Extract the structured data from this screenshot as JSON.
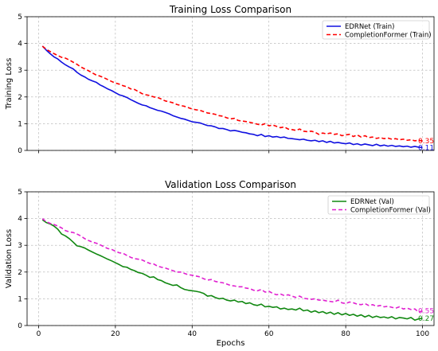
{
  "chart_data": [
    {
      "type": "line",
      "title": "Training Loss Comparison",
      "xlabel": "",
      "ylabel": "Training Loss",
      "xlim": [
        -3,
        103
      ],
      "ylim": [
        0,
        5
      ],
      "xticks": [
        0,
        20,
        40,
        60,
        80,
        100
      ],
      "yticks": [
        0,
        1,
        2,
        3,
        4,
        5
      ],
      "show_x_tick_labels": false,
      "grid": true,
      "legend_position": "top-right",
      "x": [
        1,
        2,
        3,
        4,
        5,
        6,
        7,
        8,
        9,
        10,
        11,
        12,
        13,
        14,
        15,
        16,
        17,
        18,
        19,
        20,
        21,
        22,
        23,
        24,
        25,
        26,
        27,
        28,
        29,
        30,
        31,
        32,
        33,
        34,
        35,
        36,
        37,
        38,
        39,
        40,
        41,
        42,
        43,
        44,
        45,
        46,
        47,
        48,
        49,
        50,
        51,
        52,
        53,
        54,
        55,
        56,
        57,
        58,
        59,
        60,
        61,
        62,
        63,
        64,
        65,
        66,
        67,
        68,
        69,
        70,
        71,
        72,
        73,
        74,
        75,
        76,
        77,
        78,
        79,
        80,
        81,
        82,
        83,
        84,
        85,
        86,
        87,
        88,
        89,
        90,
        91,
        92,
        93,
        94,
        95,
        96,
        97,
        98,
        99,
        100
      ],
      "series": [
        {
          "name": "EDRNet (Train)",
          "color": "#1010e0",
          "dash": "solid",
          "end_label": "0.11",
          "values": [
            3.9,
            3.75,
            3.62,
            3.5,
            3.42,
            3.3,
            3.2,
            3.12,
            3.05,
            2.92,
            2.82,
            2.75,
            2.66,
            2.6,
            2.55,
            2.45,
            2.38,
            2.3,
            2.24,
            2.16,
            2.08,
            2.04,
            1.98,
            1.9,
            1.83,
            1.76,
            1.7,
            1.67,
            1.6,
            1.55,
            1.5,
            1.47,
            1.42,
            1.37,
            1.3,
            1.25,
            1.2,
            1.17,
            1.12,
            1.07,
            1.05,
            1.03,
            0.98,
            0.93,
            0.92,
            0.88,
            0.82,
            0.82,
            0.78,
            0.73,
            0.75,
            0.72,
            0.68,
            0.66,
            0.62,
            0.6,
            0.55,
            0.6,
            0.52,
            0.55,
            0.5,
            0.52,
            0.48,
            0.5,
            0.45,
            0.44,
            0.42,
            0.4,
            0.42,
            0.38,
            0.36,
            0.38,
            0.33,
            0.36,
            0.3,
            0.34,
            0.28,
            0.3,
            0.27,
            0.25,
            0.28,
            0.22,
            0.25,
            0.2,
            0.24,
            0.21,
            0.18,
            0.23,
            0.17,
            0.2,
            0.16,
            0.19,
            0.15,
            0.17,
            0.14,
            0.16,
            0.12,
            0.15,
            0.12,
            0.11
          ]
        },
        {
          "name": "CompletionFormer (Train)",
          "color": "#ff0000",
          "dash": "dashed",
          "end_label": "0.35",
          "values": [
            3.9,
            3.78,
            3.7,
            3.62,
            3.55,
            3.48,
            3.45,
            3.38,
            3.3,
            3.22,
            3.12,
            3.05,
            2.98,
            2.9,
            2.82,
            2.78,
            2.72,
            2.65,
            2.58,
            2.52,
            2.48,
            2.42,
            2.38,
            2.3,
            2.28,
            2.2,
            2.12,
            2.08,
            2.05,
            2.0,
            1.98,
            1.92,
            1.85,
            1.82,
            1.78,
            1.72,
            1.68,
            1.65,
            1.6,
            1.55,
            1.52,
            1.5,
            1.45,
            1.4,
            1.38,
            1.35,
            1.3,
            1.28,
            1.22,
            1.18,
            1.2,
            1.12,
            1.1,
            1.08,
            1.05,
            1.02,
            0.98,
            0.95,
            1.0,
            0.92,
            0.95,
            0.9,
            0.85,
            0.88,
            0.8,
            0.78,
            0.75,
            0.8,
            0.72,
            0.7,
            0.72,
            0.68,
            0.6,
            0.65,
            0.62,
            0.65,
            0.6,
            0.62,
            0.55,
            0.58,
            0.6,
            0.52,
            0.58,
            0.5,
            0.55,
            0.48,
            0.5,
            0.45,
            0.48,
            0.44,
            0.46,
            0.42,
            0.44,
            0.4,
            0.42,
            0.38,
            0.4,
            0.36,
            0.38,
            0.35
          ]
        }
      ]
    },
    {
      "type": "line",
      "title": "Validation Loss Comparison",
      "xlabel": "Epochs",
      "ylabel": "Validation Loss",
      "xlim": [
        -3,
        103
      ],
      "ylim": [
        0,
        5
      ],
      "xticks": [
        0,
        20,
        40,
        60,
        80,
        100
      ],
      "yticks": [
        0,
        1,
        2,
        3,
        4,
        5
      ],
      "show_x_tick_labels": true,
      "grid": true,
      "legend_position": "top-right",
      "x": [
        1,
        2,
        3,
        4,
        5,
        6,
        7,
        8,
        9,
        10,
        11,
        12,
        13,
        14,
        15,
        16,
        17,
        18,
        19,
        20,
        21,
        22,
        23,
        24,
        25,
        26,
        27,
        28,
        29,
        30,
        31,
        32,
        33,
        34,
        35,
        36,
        37,
        38,
        39,
        40,
        41,
        42,
        43,
        44,
        45,
        46,
        47,
        48,
        49,
        50,
        51,
        52,
        53,
        54,
        55,
        56,
        57,
        58,
        59,
        60,
        61,
        62,
        63,
        64,
        65,
        66,
        67,
        68,
        69,
        70,
        71,
        72,
        73,
        74,
        75,
        76,
        77,
        78,
        79,
        80,
        81,
        82,
        83,
        84,
        85,
        86,
        87,
        88,
        89,
        90,
        91,
        92,
        93,
        94,
        95,
        96,
        97,
        98,
        99,
        100
      ],
      "series": [
        {
          "name": "EDRNet (Val)",
          "color": "#118811",
          "dash": "solid",
          "end_label": "0.27",
          "values": [
            3.95,
            3.85,
            3.8,
            3.72,
            3.6,
            3.42,
            3.35,
            3.25,
            3.12,
            2.98,
            2.95,
            2.9,
            2.82,
            2.75,
            2.68,
            2.62,
            2.55,
            2.48,
            2.42,
            2.35,
            2.28,
            2.2,
            2.18,
            2.1,
            2.05,
            1.98,
            1.95,
            1.88,
            1.8,
            1.82,
            1.72,
            1.68,
            1.6,
            1.55,
            1.5,
            1.52,
            1.42,
            1.35,
            1.32,
            1.3,
            1.28,
            1.25,
            1.2,
            1.1,
            1.12,
            1.05,
            1.0,
            1.02,
            0.95,
            0.92,
            0.95,
            0.88,
            0.9,
            0.82,
            0.85,
            0.78,
            0.75,
            0.8,
            0.7,
            0.72,
            0.68,
            0.7,
            0.62,
            0.65,
            0.6,
            0.62,
            0.58,
            0.65,
            0.55,
            0.58,
            0.5,
            0.55,
            0.48,
            0.52,
            0.45,
            0.5,
            0.42,
            0.48,
            0.4,
            0.45,
            0.38,
            0.42,
            0.35,
            0.4,
            0.32,
            0.38,
            0.3,
            0.35,
            0.3,
            0.32,
            0.28,
            0.33,
            0.25,
            0.3,
            0.28,
            0.25,
            0.3,
            0.2,
            0.25,
            0.27
          ]
        },
        {
          "name": "CompletionFormer (Val)",
          "color": "#e020d0",
          "dash": "dashed",
          "end_label": "0.55",
          "values": [
            4.0,
            3.88,
            3.82,
            3.78,
            3.72,
            3.65,
            3.55,
            3.5,
            3.48,
            3.42,
            3.35,
            3.25,
            3.18,
            3.12,
            3.08,
            3.02,
            2.95,
            2.88,
            2.85,
            2.78,
            2.72,
            2.7,
            2.62,
            2.55,
            2.5,
            2.48,
            2.45,
            2.38,
            2.32,
            2.3,
            2.22,
            2.18,
            2.15,
            2.1,
            2.05,
            2.0,
            2.0,
            1.95,
            1.9,
            1.88,
            1.85,
            1.82,
            1.75,
            1.7,
            1.72,
            1.65,
            1.62,
            1.6,
            1.55,
            1.5,
            1.48,
            1.45,
            1.45,
            1.4,
            1.38,
            1.32,
            1.3,
            1.35,
            1.25,
            1.28,
            1.2,
            1.15,
            1.18,
            1.12,
            1.15,
            1.1,
            1.05,
            1.1,
            1.02,
            1.0,
            0.98,
            1.0,
            0.95,
            0.95,
            0.92,
            0.9,
            0.88,
            0.95,
            0.85,
            0.82,
            0.88,
            0.85,
            0.8,
            0.78,
            0.82,
            0.75,
            0.78,
            0.72,
            0.75,
            0.7,
            0.72,
            0.68,
            0.65,
            0.7,
            0.62,
            0.65,
            0.6,
            0.62,
            0.5,
            0.55
          ]
        }
      ]
    }
  ]
}
